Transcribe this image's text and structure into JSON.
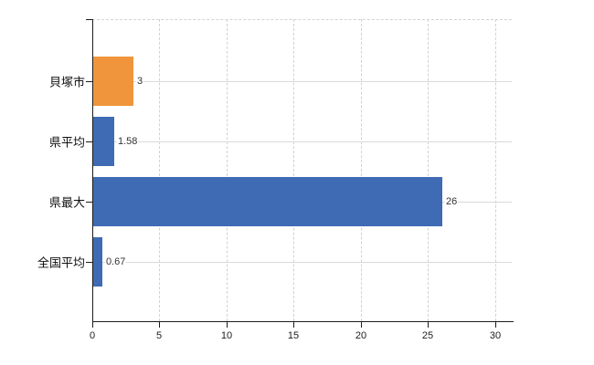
{
  "chart_data": {
    "type": "bar",
    "orientation": "horizontal",
    "title": "",
    "xlabel": "",
    "ylabel": "",
    "categories": [
      "貝塚市",
      "県平均",
      "県最大",
      "全国平均"
    ],
    "values": [
      3,
      1.58,
      26,
      0.67
    ],
    "value_labels": [
      "3",
      "1.58",
      "26",
      "0.67"
    ],
    "bar_colors": [
      "#f0953c",
      "#3e6bb3",
      "#3e6bb3",
      "#3e6bb3"
    ],
    "xticks": [
      0,
      5,
      10,
      15,
      20,
      25,
      30
    ],
    "xtick_labels": [
      "0",
      "5",
      "10",
      "15",
      "20",
      "25",
      "30"
    ],
    "xlim": [
      0,
      31.25
    ],
    "grid": true,
    "legend": false,
    "background_color": "#ffffff",
    "axis_color": "#1c1c1c",
    "gridline_solid_color": "#d7dbd7",
    "gridline_dashed_color": "#cfd4cf",
    "accent_orange": "#f0953c",
    "accent_blue": "#3e6bb3"
  }
}
